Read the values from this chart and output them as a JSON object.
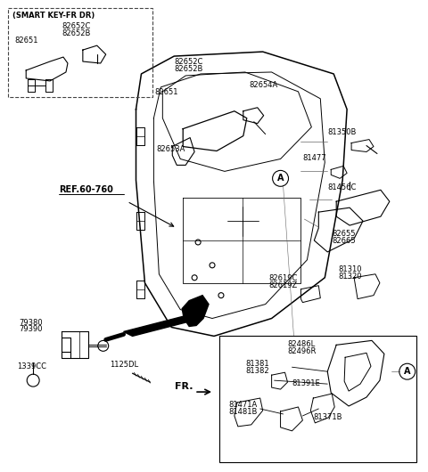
{
  "bg_color": "#ffffff",
  "line_color": "#000000",
  "gray_color": "#666666",
  "smart_key_title": "(SMART KEY-FR DR)",
  "ref_label": "REF.60-760",
  "fr_label": "FR."
}
